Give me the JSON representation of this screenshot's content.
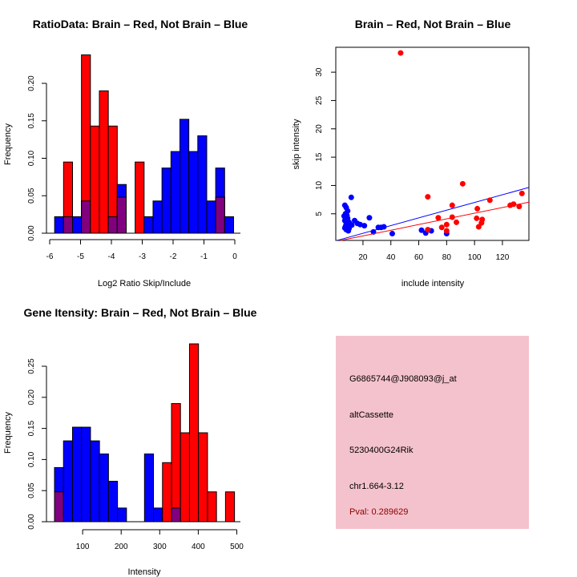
{
  "chart_data": [
    {
      "type": "bar",
      "subtype": "overlaid-histogram",
      "title": "RatioData: Brain – Red, Not Brain – Blue",
      "xlabel": "Log2 Ratio Skip/Include",
      "ylabel": "Frequency",
      "xlim": [
        -6,
        0
      ],
      "ylim": [
        0,
        0.25
      ],
      "xticks": [
        "-6",
        "-5",
        "-4",
        "-3",
        "-2",
        "-1",
        "0"
      ],
      "yticks": [
        "0.00",
        "0.05",
        "0.10",
        "0.15",
        "0.20"
      ],
      "bin_start": -5.84,
      "bin_width": 0.29,
      "series": [
        {
          "name": "Not Brain",
          "color": "#0000ff",
          "values": [
            0.022,
            0.022,
            0.022,
            0.043,
            0,
            0,
            0.022,
            0.065,
            0,
            0,
            0.022,
            0.043,
            0.087,
            0.109,
            0.152,
            0.109,
            0.13,
            0.043,
            0.087,
            0.022
          ]
        },
        {
          "name": "Brain",
          "color": "#ff0000",
          "values": [
            0,
            0.095,
            0,
            0.238,
            0.143,
            0.19,
            0.143,
            0.048,
            0,
            0.095,
            0,
            0,
            0,
            0,
            0,
            0,
            0,
            0,
            0.048,
            0
          ]
        }
      ],
      "overlap_color": "#800080"
    },
    {
      "type": "scatter",
      "title": "Brain – Red, Not Brain – Blue",
      "xlabel": "include intensity",
      "ylabel": "skip intensity",
      "xlim": [
        0.5,
        139
      ],
      "ylim": [
        0.3,
        34.4
      ],
      "xticks": [
        "20",
        "40",
        "60",
        "80",
        "100",
        "120"
      ],
      "yticks": [
        "5",
        "10",
        "15",
        "20",
        "25",
        "30"
      ],
      "series": [
        {
          "name": "Not Brain",
          "color": "#0000ff",
          "points": [
            [
              11.6,
              7.9
            ],
            [
              7,
              6.5
            ],
            [
              8,
              6.1
            ],
            [
              9,
              5.5
            ],
            [
              7.5,
              5
            ],
            [
              8.5,
              4.7
            ],
            [
              6.5,
              4.6
            ],
            [
              9,
              4.2
            ],
            [
              7,
              3.8
            ],
            [
              10,
              3.5
            ],
            [
              8,
              3.2
            ],
            [
              11,
              3.1
            ],
            [
              7.5,
              2.8
            ],
            [
              9,
              2.6
            ],
            [
              10,
              2.4
            ],
            [
              8,
              2.2
            ],
            [
              7,
              2.5
            ],
            [
              9.5,
              2
            ],
            [
              12,
              3
            ],
            [
              14,
              3.8
            ],
            [
              16,
              3.3
            ],
            [
              18,
              3.1
            ],
            [
              21,
              2.9
            ],
            [
              24.6,
              4.3
            ],
            [
              27.5,
              1.8
            ],
            [
              31,
              2.6
            ],
            [
              33,
              2.6
            ],
            [
              35,
              2.7
            ],
            [
              41,
              1.5
            ],
            [
              62,
              2.1
            ],
            [
              65,
              1.6
            ],
            [
              69,
              2
            ],
            [
              80,
              1.5
            ]
          ],
          "fit": {
            "intercept": 0.2,
            "slope": 0.068
          }
        },
        {
          "name": "Brain",
          "color": "#ff0000",
          "points": [
            [
              47,
              33.4
            ],
            [
              66.5,
              8
            ],
            [
              66.5,
              2.2
            ],
            [
              74,
              4.3
            ],
            [
              76.5,
              2.6
            ],
            [
              80,
              3.1
            ],
            [
              80,
              2
            ],
            [
              84,
              6.5
            ],
            [
              84,
              4.4
            ],
            [
              87,
              3.5
            ],
            [
              91.5,
              10.3
            ],
            [
              101.5,
              4.2
            ],
            [
              102,
              5.9
            ],
            [
              103,
              2.7
            ],
            [
              105,
              3.4
            ],
            [
              105.5,
              4
            ],
            [
              111,
              7.4
            ],
            [
              125.6,
              6.5
            ],
            [
              128,
              6.7
            ],
            [
              132,
              6.3
            ],
            [
              134,
              8.6
            ]
          ],
          "fit": {
            "intercept": 0.1,
            "slope": 0.05
          }
        }
      ]
    },
    {
      "type": "bar",
      "subtype": "overlaid-histogram",
      "title": "Gene Itensity: Brain – Red, Not Brain – Blue",
      "xlabel": "Intensity",
      "ylabel": "Frequency",
      "xlim": [
        27,
        500
      ],
      "ylim": [
        0,
        0.29
      ],
      "xticks": [
        "100",
        "200",
        "300",
        "400",
        "500"
      ],
      "yticks": [
        "0.00",
        "0.05",
        "0.10",
        "0.15",
        "0.20",
        "0.25"
      ],
      "bin_start": 27,
      "bin_width": 23.35,
      "series": [
        {
          "name": "Not Brain",
          "color": "#0000ff",
          "values": [
            0.087,
            0.13,
            0.152,
            0.152,
            0.13,
            0.109,
            0.065,
            0.022,
            0,
            0,
            0.109,
            0.022,
            0,
            0.022,
            0,
            0,
            0,
            0,
            0,
            0
          ]
        },
        {
          "name": "Brain",
          "color": "#ff0000",
          "values": [
            0.048,
            0,
            0,
            0,
            0,
            0,
            0,
            0,
            0,
            0,
            0,
            0,
            0.095,
            0.19,
            0.143,
            0.286,
            0.143,
            0.048,
            0,
            0.048
          ]
        }
      ],
      "overlap_color": "#800080"
    }
  ],
  "info_box": {
    "background": "#f4c2cc",
    "lines": [
      "G6865744@J908093@j_at",
      "altCassette",
      "5230400G24Rik",
      "chr1.664-3.12"
    ],
    "pval": "Pval: 0.289629",
    "pval_color": "#8b0000"
  }
}
